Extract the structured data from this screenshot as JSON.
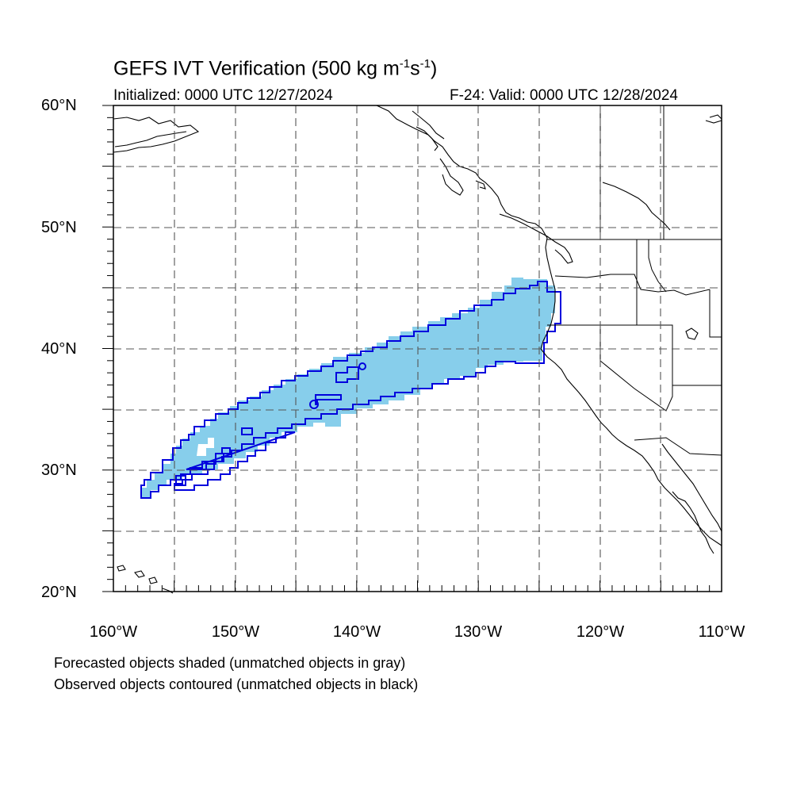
{
  "title": {
    "main": "GEFS IVT Verification (500 kg m",
    "exp1": "-1",
    "mid": "s",
    "exp2": "-1",
    "end": ")"
  },
  "initialized": "Initialized: 0000 UTC 12/27/2024",
  "valid": "F-24: Valid: 0000 UTC 12/28/2024",
  "lat_labels": [
    "60°N",
    "50°N",
    "40°N",
    "30°N",
    "20°N"
  ],
  "lon_labels": [
    "160°W",
    "150°W",
    "140°W",
    "130°W",
    "120°W",
    "110°W"
  ],
  "legend": {
    "line1": "Forecasted objects shaded (unmatched objects in gray)",
    "line2": "Observed objects contoured (unmatched objects in black)"
  },
  "colors": {
    "forecast_fill": "#87ceeb",
    "observed_contour": "#0000dd",
    "coast": "#000000",
    "grid": "#555555"
  },
  "map_extent": {
    "lon": [
      -160,
      -110
    ],
    "lat": [
      20,
      60
    ]
  }
}
